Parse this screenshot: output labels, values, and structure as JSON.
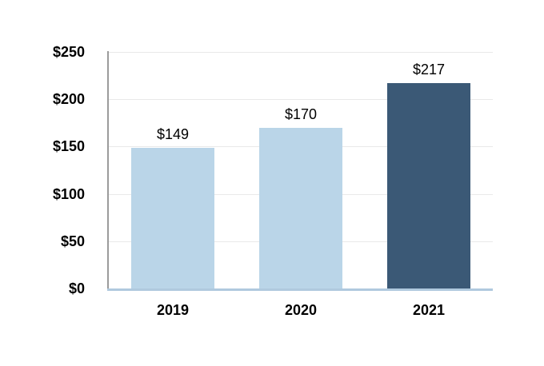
{
  "chart_data": {
    "type": "bar",
    "title": "",
    "xlabel": "",
    "ylabel": "",
    "categories": [
      "2019",
      "2020",
      "2021"
    ],
    "values": [
      149,
      170,
      217
    ],
    "data_labels": [
      "$149",
      "$170",
      "$217"
    ],
    "y_ticks": [
      0,
      50,
      100,
      150,
      200,
      250
    ],
    "y_tick_labels": [
      "$0",
      "$50",
      "$100",
      "$150",
      "$200",
      "$250"
    ],
    "ylim": [
      0,
      250
    ],
    "grid": "horizontal",
    "legend": "none",
    "bar_colors": [
      "#BAD5E8",
      "#BAD5E8",
      "#3B5976"
    ],
    "colors": {
      "light_bar": "#BAD5E8",
      "dark_bar": "#3B5976",
      "baseline": "#B0C9DE",
      "gridline": "#E9E9E9",
      "axis_line": "#9B9B9B",
      "text": "#000000",
      "background": "#FFFFFF"
    }
  }
}
